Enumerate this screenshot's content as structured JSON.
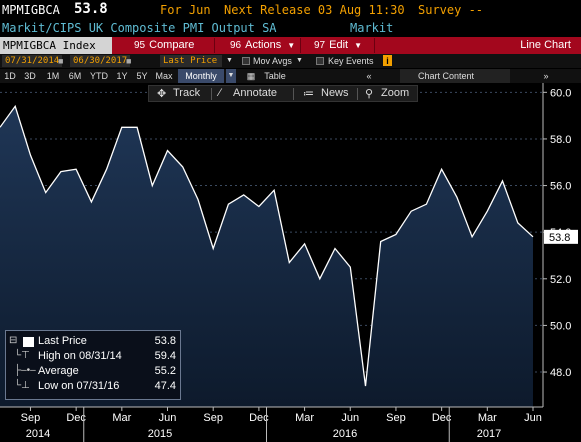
{
  "header": {
    "ticker": "MPMIGBCA",
    "last_value": "53.8",
    "period": "For Jun",
    "next_release": "Next Release 03 Aug 11:30",
    "survey": "Survey --",
    "description": "Markit/CIPS UK Composite PMI Output SA",
    "source": "Markit"
  },
  "toolbar": {
    "security": "MPMIGBCA Index",
    "compare_num": "95",
    "compare": "Compare",
    "actions_num": "96",
    "actions": "Actions",
    "edit_num": "97",
    "edit": "Edit",
    "chart_type": "Line Chart"
  },
  "dates": {
    "start": "07/31/2014",
    "end": "06/30/2017",
    "field": "Last Price",
    "mov_avgs": "Mov Avgs",
    "key_events": "Key Events"
  },
  "periods": {
    "items": [
      "1D",
      "3D",
      "1M",
      "6M",
      "YTD",
      "1Y",
      "5Y",
      "Max"
    ],
    "selected": "Monthly",
    "table": "Table",
    "chart_content": "Chart Content"
  },
  "floatbar": {
    "track": "Track",
    "annotate": "Annotate",
    "news": "News",
    "zoom": "Zoom"
  },
  "legend": {
    "last_label": "Last Price",
    "last_value": "53.8",
    "high_label": "High on 08/31/14",
    "high_value": "59.4",
    "avg_label": "Average",
    "avg_value": "55.2",
    "low_label": "Low on 07/31/16",
    "low_value": "47.4"
  },
  "colors": {
    "line": "#ffffff",
    "fill_top": "#1f3656",
    "fill_bottom": "#0d1a2c",
    "toolbar_red": "#a3071d",
    "value_box": "#ffffff"
  },
  "chart_data": {
    "type": "area",
    "x": [
      "Jul 2014",
      "Aug 2014",
      "Sep 2014",
      "Oct 2014",
      "Nov 2014",
      "Dec 2014",
      "Jan 2015",
      "Feb 2015",
      "Mar 2015",
      "Apr 2015",
      "May 2015",
      "Jun 2015",
      "Jul 2015",
      "Aug 2015",
      "Sep 2015",
      "Oct 2015",
      "Nov 2015",
      "Dec 2015",
      "Jan 2016",
      "Feb 2016",
      "Mar 2016",
      "Apr 2016",
      "May 2016",
      "Jun 2016",
      "Jul 2016",
      "Aug 2016",
      "Sep 2016",
      "Oct 2016",
      "Nov 2016",
      "Dec 2016",
      "Jan 2017",
      "Feb 2017",
      "Mar 2017",
      "Apr 2017",
      "May 2017",
      "Jun 2017"
    ],
    "values": [
      58.5,
      59.4,
      57.3,
      55.7,
      56.6,
      56.7,
      55.3,
      56.7,
      58.5,
      58.5,
      56.0,
      57.5,
      56.8,
      55.4,
      53.3,
      55.2,
      55.6,
      55.1,
      55.8,
      52.7,
      53.5,
      52.0,
      53.3,
      52.5,
      47.4,
      53.6,
      53.9,
      54.9,
      55.2,
      56.7,
      55.5,
      53.8,
      54.9,
      56.2,
      54.4,
      53.8
    ],
    "ylim": [
      46.5,
      60.4
    ],
    "yticks": [
      "48.0",
      "50.0",
      "52.0",
      "54.0",
      "56.0",
      "58.0",
      "60.0"
    ],
    "x_month_labels": [
      "Sep",
      "Dec",
      "Mar",
      "Jun",
      "Sep",
      "Dec",
      "Mar",
      "Jun",
      "Sep",
      "Dec",
      "Mar",
      "Jun"
    ],
    "x_year_labels": [
      "2014",
      "2015",
      "2016",
      "2017"
    ],
    "last_value_label": "53.8"
  }
}
